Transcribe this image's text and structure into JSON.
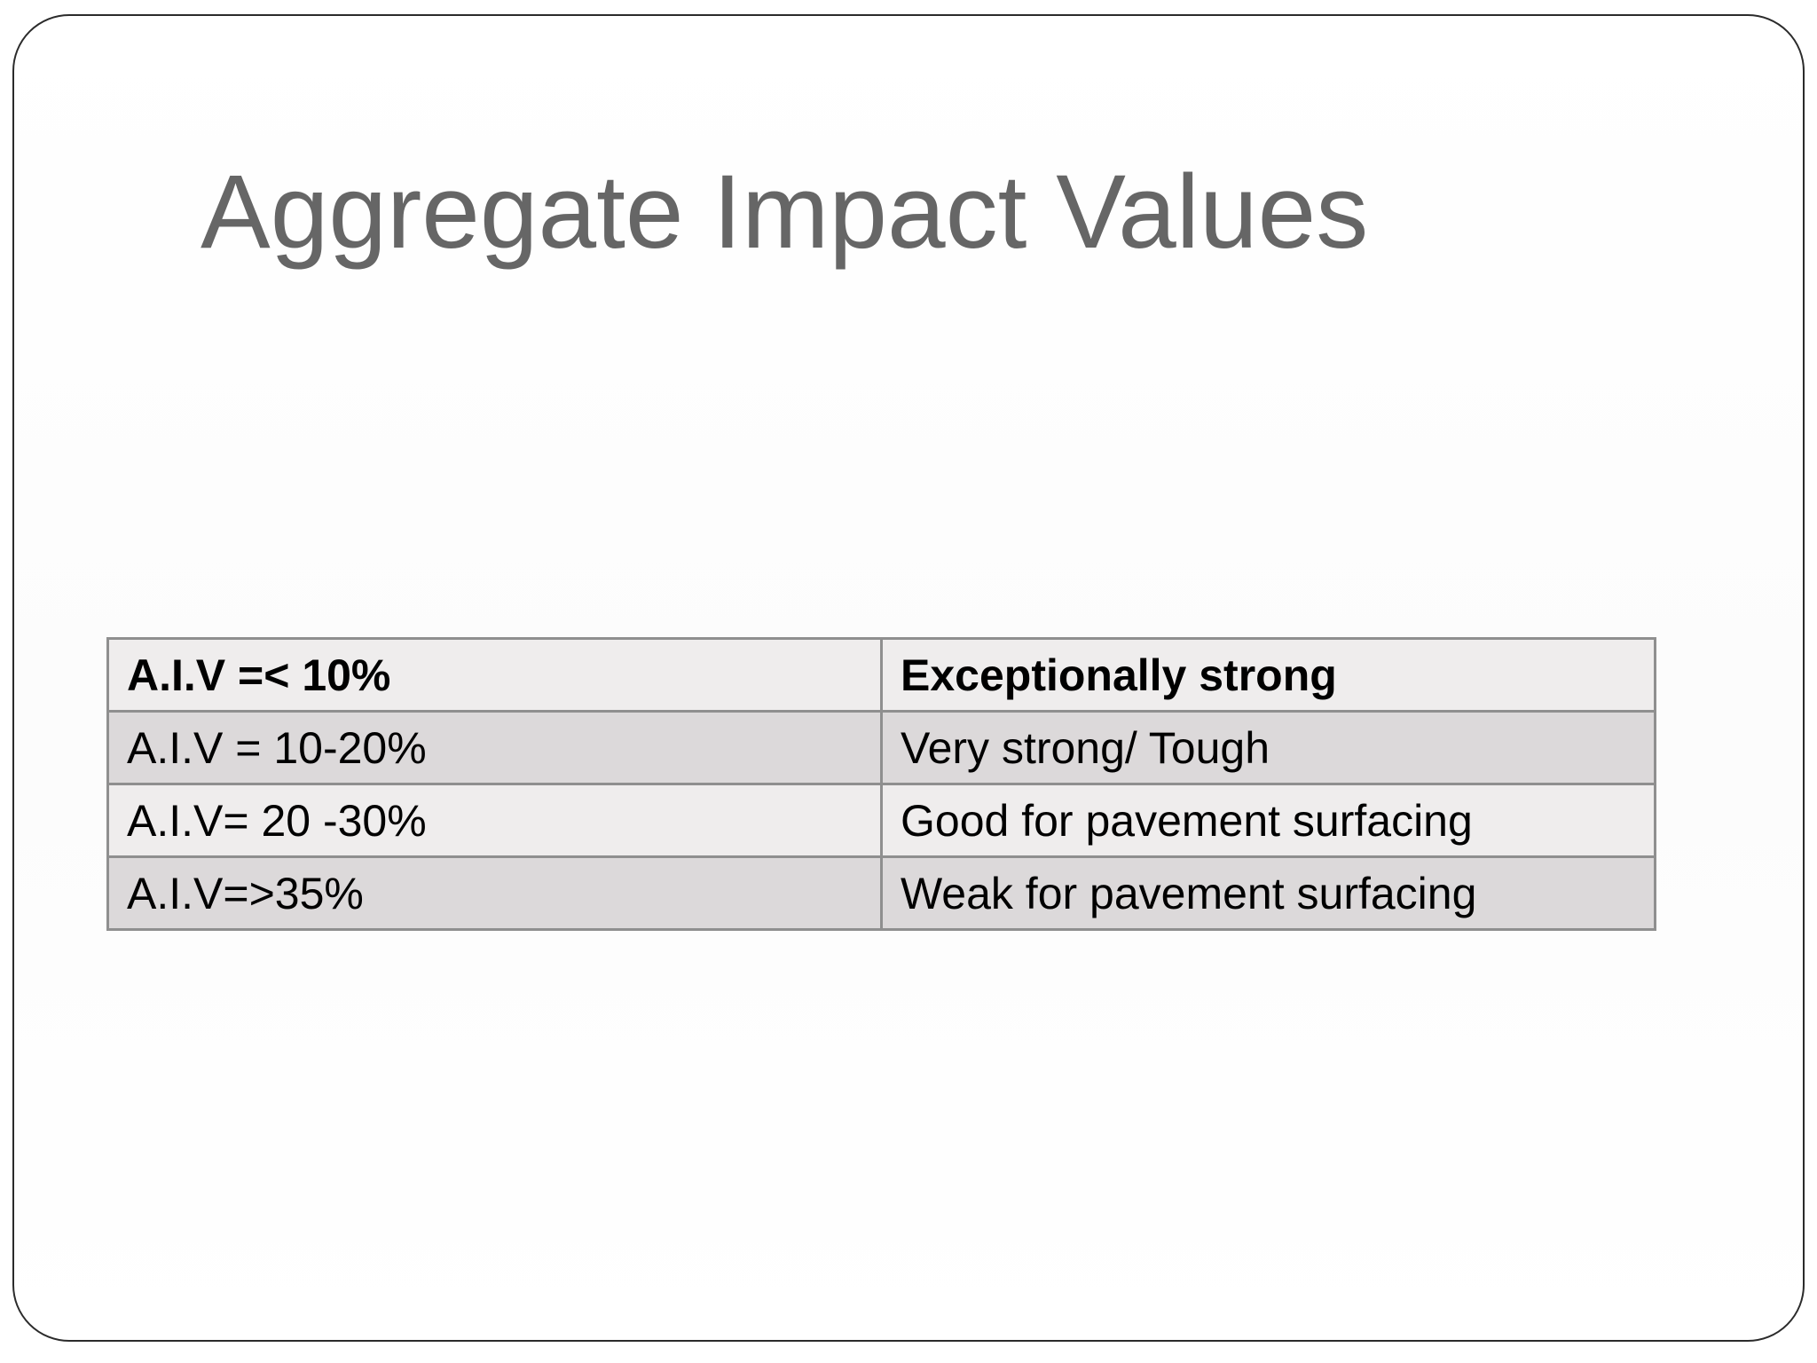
{
  "slide": {
    "title": "Aggregate Impact Values"
  },
  "table": {
    "rows": [
      {
        "value": "A.I.V =< 10%",
        "rating": "Exceptionally strong"
      },
      {
        "value": "A.I.V = 10-20%",
        "rating": "Very strong/ Tough"
      },
      {
        "value": "A.I.V= 20 -30%",
        "rating": "Good for pavement surfacing"
      },
      {
        "value": "A.I.V=>35%",
        "rating": "Weak for pavement surfacing"
      }
    ]
  },
  "colors": {
    "title": "#666666",
    "row_light": "#efeded",
    "row_dark": "#dcd9da",
    "border": "#8f8f8f",
    "frame": "#2b2b2b"
  }
}
